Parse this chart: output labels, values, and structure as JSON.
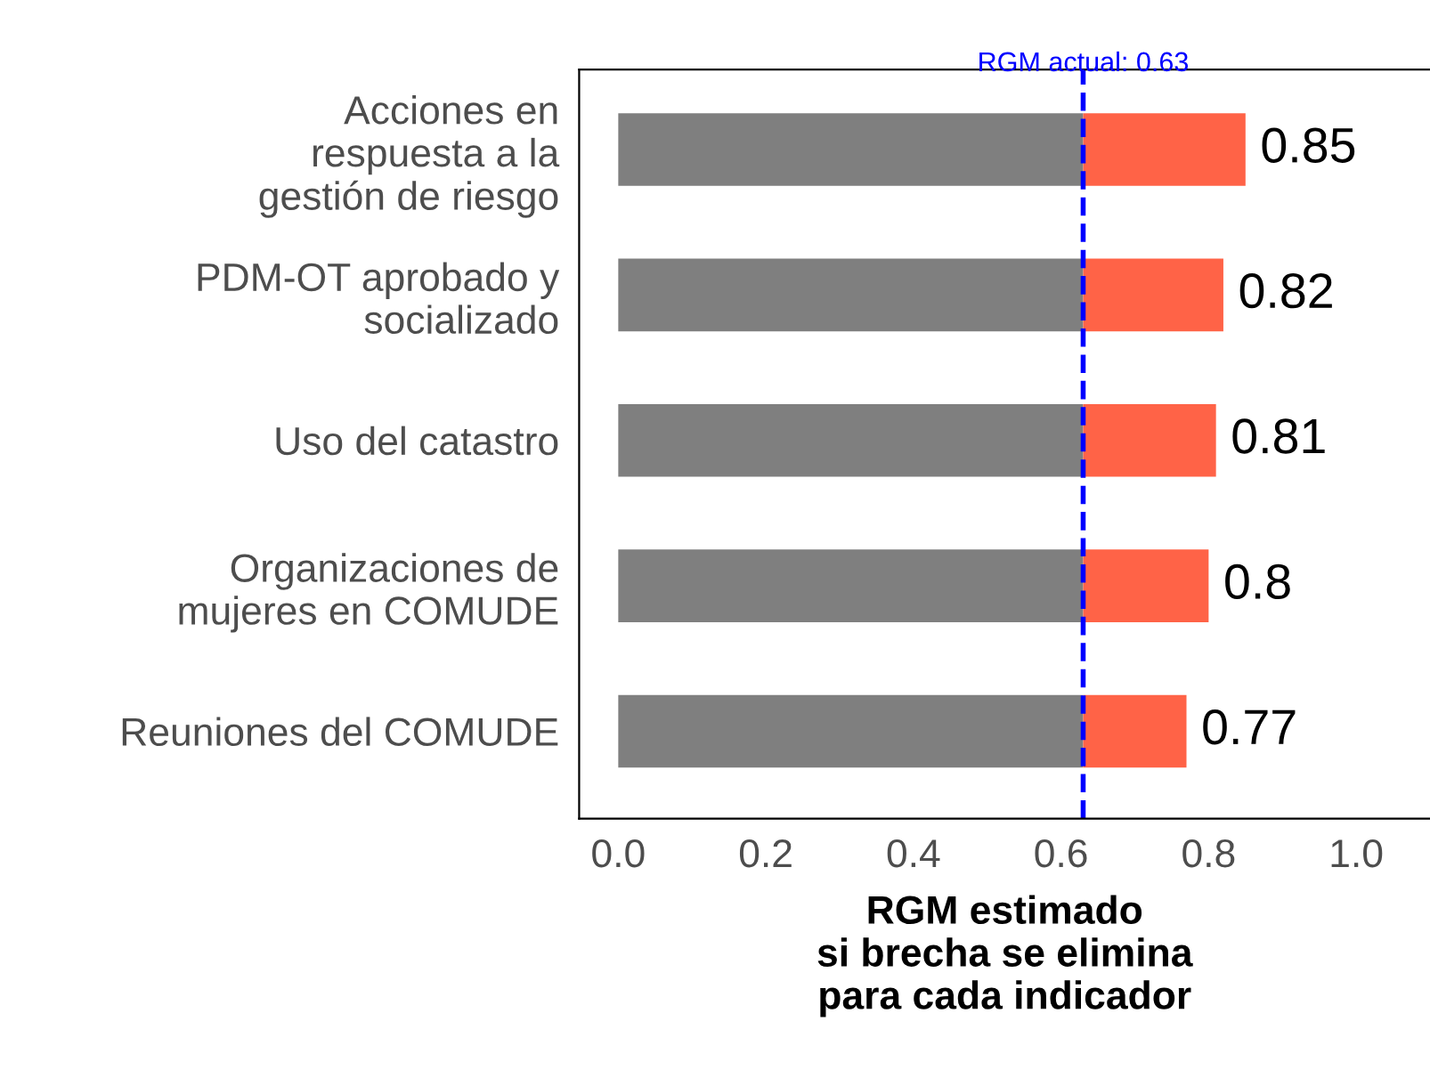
{
  "chart_data": {
    "type": "bar",
    "orientation": "horizontal",
    "stacked": true,
    "categories": [
      "Acciones en\nrespuesta a la\ngestión de riesgo",
      "PDM-OT aprobado y\nsocializado",
      "Uso del catastro",
      "Organizaciones de\nmujeres en COMUDE",
      "Reuniones del COMUDE"
    ],
    "series": [
      {
        "color": "#7f7f7f",
        "values": [
          0.63,
          0.63,
          0.63,
          0.63,
          0.63
        ]
      },
      {
        "color": "#ff6347",
        "values": [
          0.22,
          0.19,
          0.18,
          0.17,
          0.14
        ]
      }
    ],
    "totals": [
      "0.85",
      "0.82",
      "0.81",
      "0.8",
      "0.77"
    ],
    "xlabel": "RGM estimado\nsi brecha se elimina\npara cada indicador",
    "xlim": [
      -0.053,
      1.1
    ],
    "xticks": [
      {
        "value": 0,
        "label": "0.0"
      },
      {
        "value": 0.2,
        "label": "0.2"
      },
      {
        "value": 0.4,
        "label": "0.4"
      },
      {
        "value": 0.6,
        "label": "0.6"
      },
      {
        "value": 0.8,
        "label": "0.8"
      },
      {
        "value": 1,
        "label": "1.0"
      }
    ],
    "ref_lines": [
      {
        "axis": "x",
        "value": 0.63,
        "label": "RGM actual: 0.63",
        "color": "#0000ff",
        "line_style": "dashed"
      }
    ],
    "grid": false,
    "legend": false
  }
}
